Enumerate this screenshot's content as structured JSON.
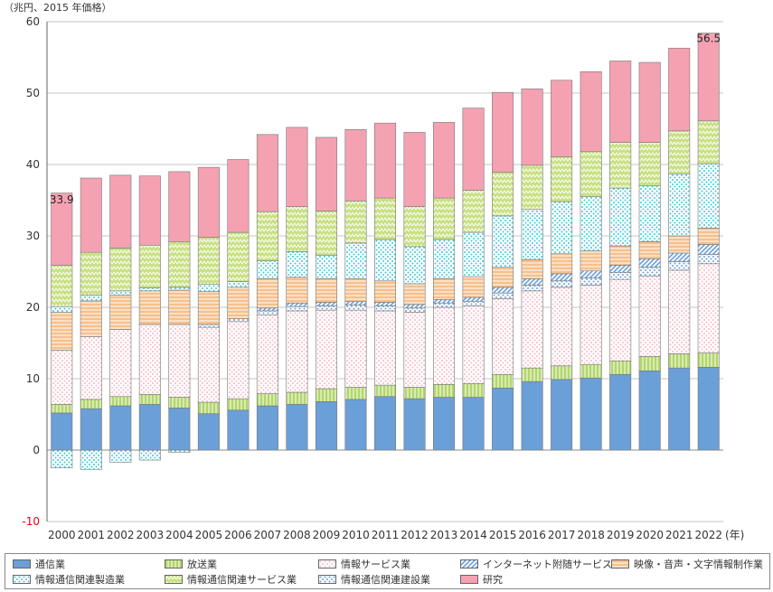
{
  "chart_data": {
    "type": "bar",
    "stacked": true,
    "unit_label": "（兆円、2015 年価格）",
    "x_unit": "(年)",
    "ylim": [
      -10,
      60
    ],
    "yticks": [
      60,
      50,
      40,
      30,
      20,
      10,
      0,
      -10
    ],
    "categories": [
      "2000",
      "2001",
      "2002",
      "2003",
      "2004",
      "2005",
      "2006",
      "2007",
      "2008",
      "2009",
      "2010",
      "2011",
      "2012",
      "2013",
      "2014",
      "2015",
      "2016",
      "2017",
      "2018",
      "2019",
      "2020",
      "2021",
      "2022"
    ],
    "annotations": [
      {
        "category": "2000",
        "text": "33.9"
      },
      {
        "category": "2022",
        "text": "56.5"
      }
    ],
    "series": [
      {
        "name": "通信業",
        "color": "#6a9fd8",
        "pattern": "solid",
        "values": [
          5.2,
          5.8,
          6.2,
          6.4,
          5.9,
          5.1,
          5.6,
          6.2,
          6.4,
          6.8,
          7.1,
          7.5,
          7.2,
          7.4,
          7.4,
          8.7,
          9.6,
          9.9,
          10.1,
          10.6,
          11.1,
          11.5,
          11.6
        ]
      },
      {
        "name": "情報通信関連製造業",
        "color": "#3fc8d8",
        "pattern": "dots",
        "values": [
          -2.5,
          -2.7,
          -1.7,
          -1.4,
          -0.3,
          0,
          0,
          0,
          0,
          0,
          0,
          0,
          0,
          0,
          0,
          0,
          0,
          0,
          0,
          0,
          0,
          0,
          0
        ]
      },
      {
        "name": "放送業",
        "color": "#b2d66a",
        "pattern": "vlines",
        "values": [
          1.2,
          1.3,
          1.3,
          1.4,
          1.5,
          1.6,
          1.6,
          1.7,
          1.7,
          1.8,
          1.7,
          1.6,
          1.6,
          1.8,
          1.9,
          1.9,
          1.9,
          1.9,
          1.9,
          1.9,
          2.0,
          2.0,
          2.0
        ]
      },
      {
        "name": "情報サービス業",
        "color": "#f4b8c4",
        "pattern": "dots",
        "values": [
          7.6,
          8.8,
          9.4,
          9.8,
          10.2,
          10.5,
          10.8,
          11.0,
          11.4,
          11.0,
          10.8,
          10.4,
          10.5,
          10.8,
          10.9,
          10.6,
          10.8,
          11.0,
          11.1,
          11.4,
          11.3,
          11.7,
          12.5
        ]
      },
      {
        "name": "情報通信関連建設業",
        "color": "#6a9fd8",
        "pattern": "dots",
        "values": [
          0,
          0,
          0,
          0,
          0,
          0.4,
          0.4,
          0.6,
          0.6,
          0.6,
          0.7,
          0.7,
          0.6,
          0.6,
          0.6,
          0.8,
          0.8,
          0.9,
          1.0,
          1.0,
          1.2,
          1.2,
          1.3
        ]
      },
      {
        "name": "インターネット附随サービス業",
        "color": "#6a9fd8",
        "pattern": "hatch",
        "values": [
          0,
          0,
          0,
          0,
          0,
          0,
          0,
          0,
          0,
          0,
          0,
          0,
          0,
          0,
          0,
          0,
          0,
          0,
          0,
          0,
          0,
          0,
          0
        ]
      },
      {
        "name": "映像・音声・文字情報制作業",
        "color": "#f6c08c",
        "pattern": "hlines",
        "values": [
          5.3,
          5.0,
          4.8,
          4.7,
          4.8,
          4.6,
          4.4,
          4.1,
          3.6,
          3.3,
          3.2,
          3.0,
          2.9,
          2.9,
          2.9,
          2.8,
          2.7,
          2.8,
          2.8,
          2.7,
          2.4,
          2.4,
          2.3
        ]
      },
      {
        "name": "情報通信関連サービス業",
        "color": "#c8e082",
        "pattern": "zigzag",
        "values": [
          5.8,
          6.0,
          6.0,
          6.0,
          6.4,
          6.6,
          6.9,
          6.9,
          6.3,
          6.2,
          5.9,
          5.8,
          5.6,
          5.8,
          5.9,
          6.1,
          6.2,
          6.3,
          6.3,
          6.4,
          6.1,
          6.0,
          6.0
        ]
      },
      {
        "name": "情報通信関連建設業",
        "color": "#3fc8d8",
        "pattern": "dots",
        "values": [
          0,
          0,
          0,
          0,
          0,
          0,
          0,
          0,
          0,
          0,
          0,
          0,
          0,
          0,
          0,
          0,
          0,
          0,
          0,
          0,
          0,
          0,
          0
        ]
      },
      {
        "name": "研究",
        "color": "#f4a2b2",
        "pattern": "solid",
        "values": [
          10.1,
          10.4,
          10.2,
          9.7,
          9.8,
          9.8,
          10.2,
          10.8,
          11.1,
          10.3,
          10.0,
          10.5,
          10.4,
          10.6,
          11.5,
          11.2,
          10.7,
          10.7,
          11.2,
          11.4,
          11.2,
          11.6,
          12.3
        ]
      }
    ],
    "stack_overlays": {
      "internet_added_to_info_service_top": [
        0,
        0,
        0,
        0,
        0,
        0,
        0,
        0.4,
        0.5,
        0.5,
        0.5,
        0.5,
        0.5,
        0.5,
        0.6,
        0.8,
        0.9,
        1.0,
        1.0,
        1.0,
        1.2,
        1.2,
        1.4
      ],
      "manufacturing_positive": [
        0.8,
        0.8,
        0.6,
        0.4,
        0.4,
        1.0,
        0.8,
        2.5,
        3.6,
        3.3,
        5.0,
        5.8,
        5.2,
        5.5,
        6.2,
        7.2,
        7.0,
        7.3,
        7.6,
        8.1,
        7.8,
        8.7,
        9.0
      ]
    }
  },
  "legend": [
    {
      "label": "通信業",
      "color": "#6a9fd8",
      "pattern": "solid"
    },
    {
      "label": "放送業",
      "color": "#b2d66a",
      "pattern": "vlines"
    },
    {
      "label": "情報サービス業",
      "color": "#f4b8c4",
      "pattern": "dots"
    },
    {
      "label": "インターネット附随サービス業",
      "color": "#6a9fd8",
      "pattern": "hatch"
    },
    {
      "label": "映像・音声・文字情報制作業",
      "color": "#f6c08c",
      "pattern": "hlines"
    },
    {
      "label": "情報通信関連製造業",
      "color": "#3fc8d8",
      "pattern": "dots"
    },
    {
      "label": "情報通信関連サービス業",
      "color": "#c8e082",
      "pattern": "zigzag"
    },
    {
      "label": "情報通信関連建設業",
      "color": "#6a9fd8",
      "pattern": "dots"
    },
    {
      "label": "研究",
      "color": "#f4a2b2",
      "pattern": "solid"
    }
  ]
}
